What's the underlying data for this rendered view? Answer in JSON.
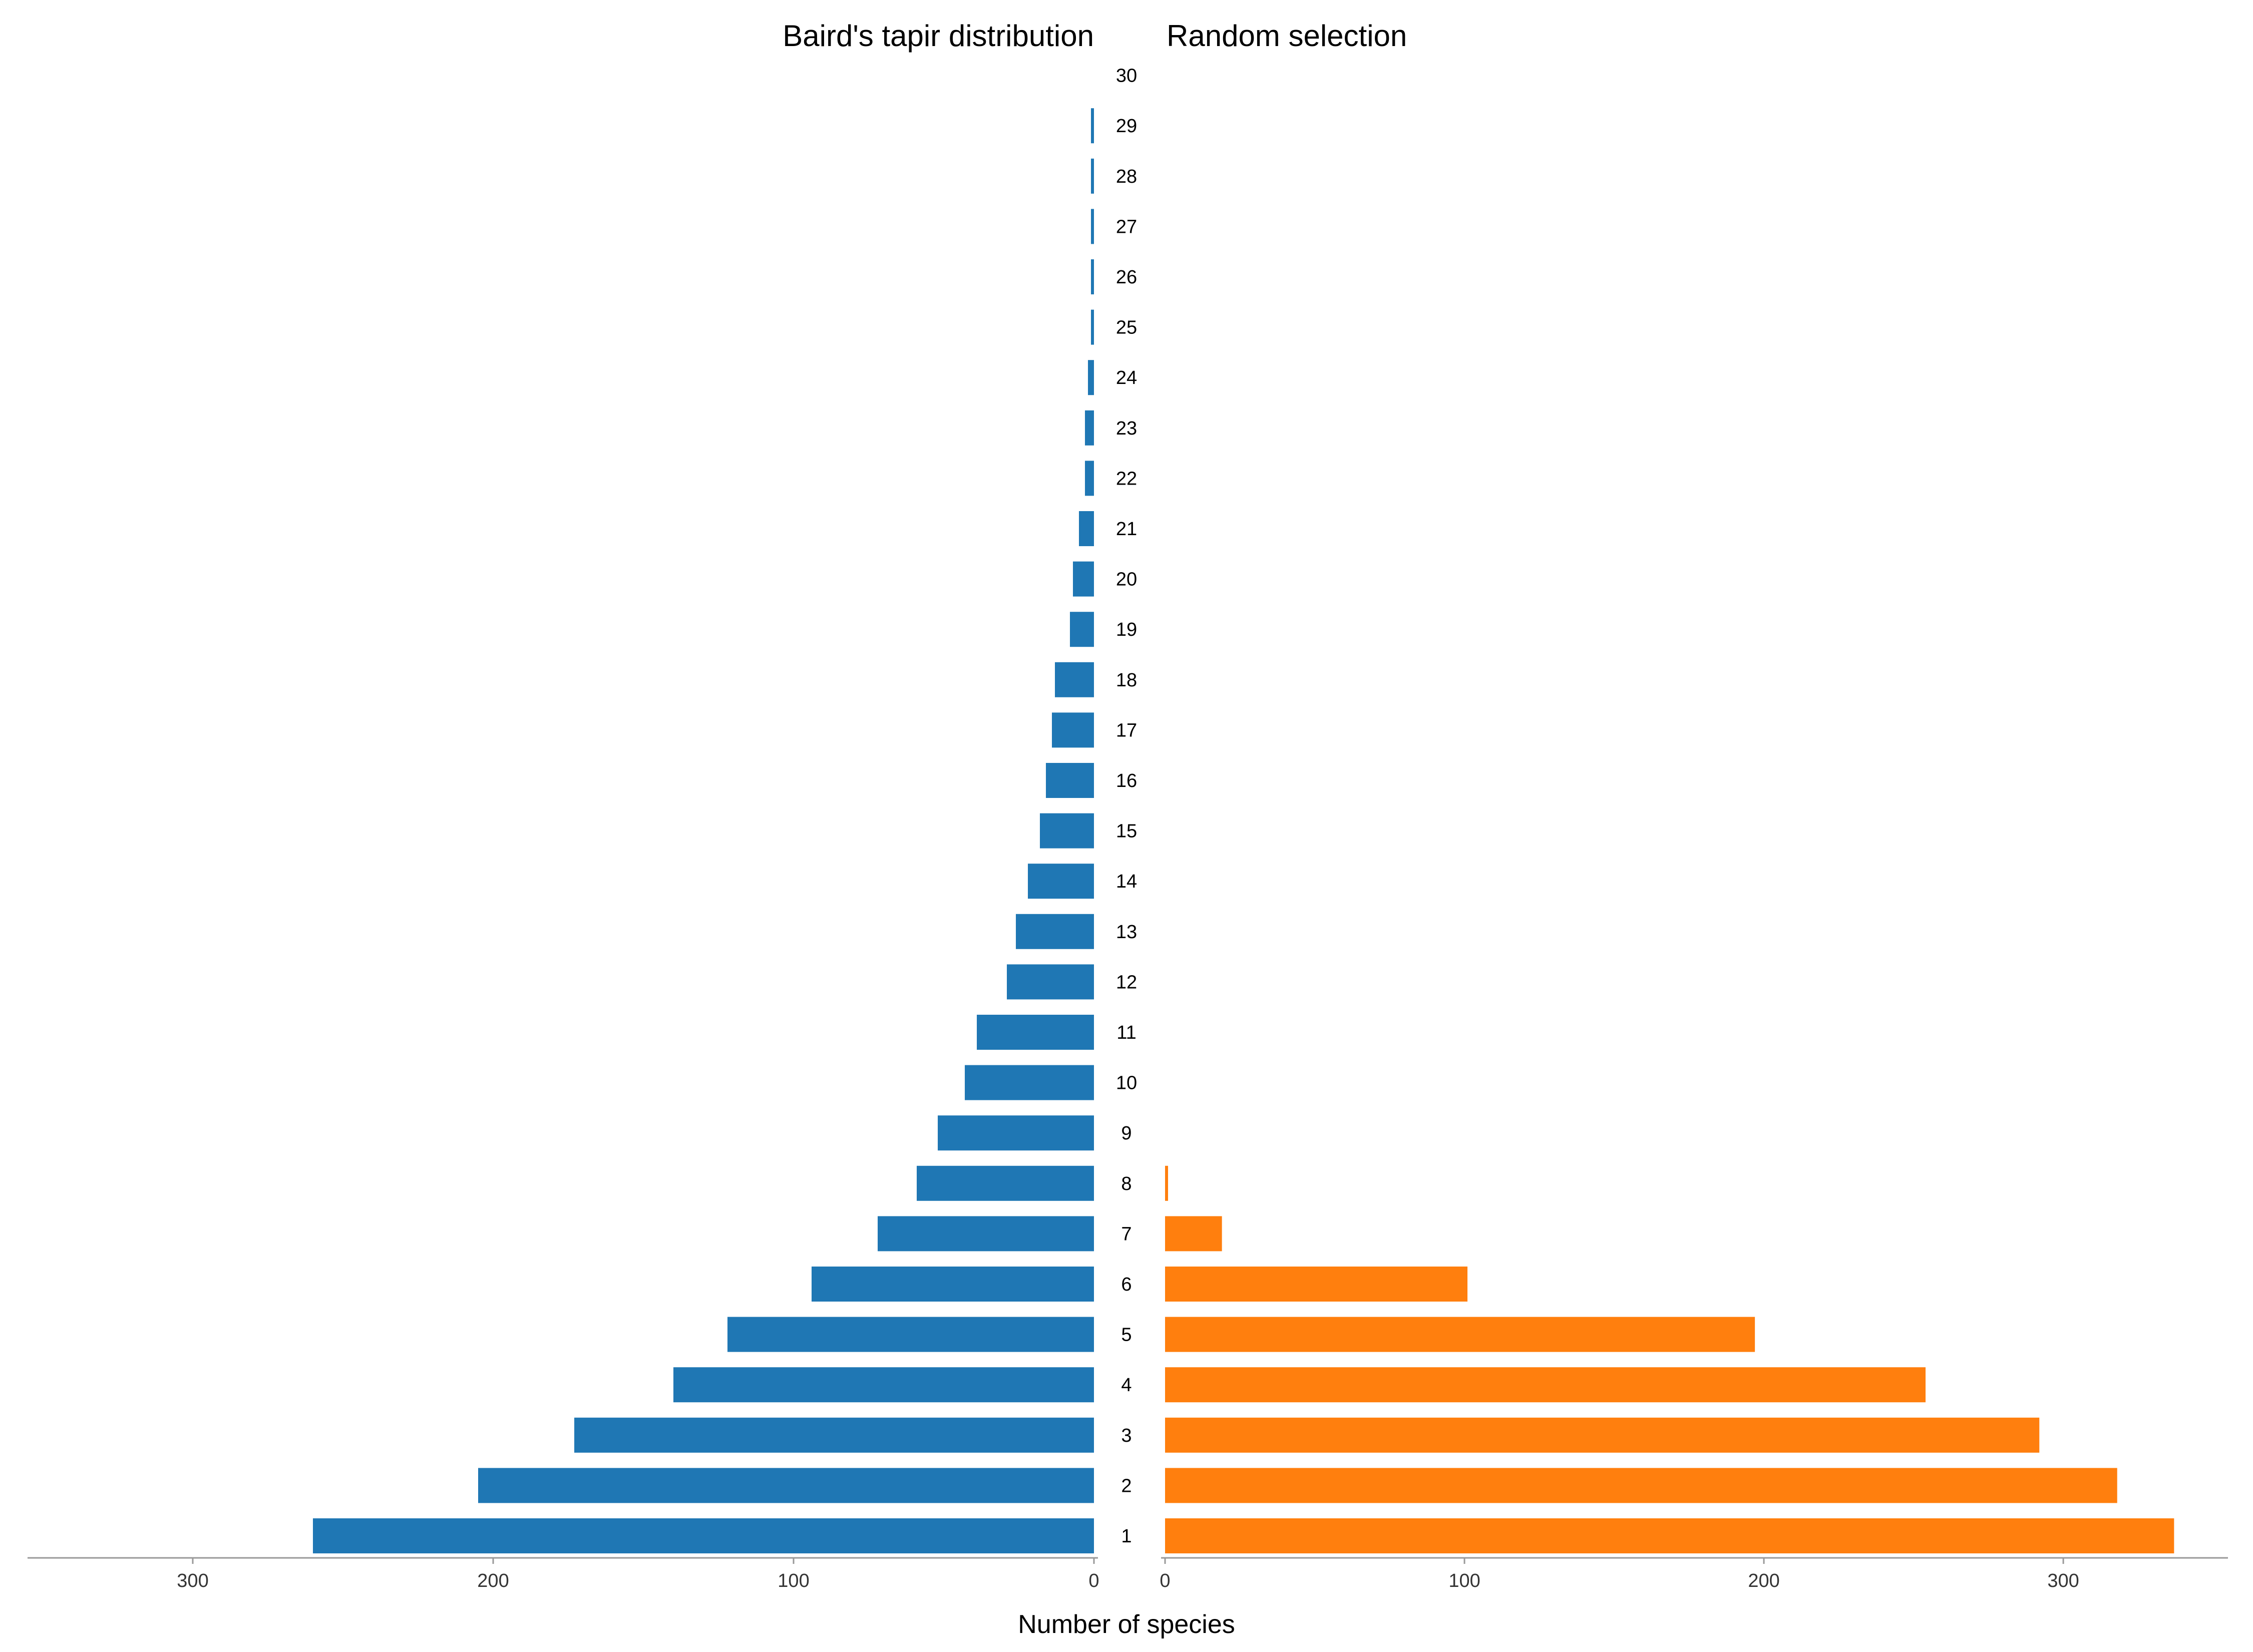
{
  "chart_data": {
    "type": "bar",
    "orientation": "horizontal",
    "layout": "back-to-back",
    "categories": [
      "1",
      "2",
      "3",
      "4",
      "5",
      "6",
      "7",
      "8",
      "9",
      "10",
      "11",
      "12",
      "13",
      "14",
      "15",
      "16",
      "17",
      "18",
      "19",
      "20",
      "21",
      "22",
      "23",
      "24",
      "25",
      "26",
      "27",
      "28",
      "29",
      "30"
    ],
    "series": [
      {
        "name": "Baird's tapir distribution",
        "color": "#1f77b4",
        "side": "left",
        "values": [
          260,
          205,
          173,
          140,
          122,
          94,
          72,
          59,
          52,
          43,
          39,
          29,
          26,
          22,
          18,
          16,
          14,
          13,
          8,
          7,
          5,
          3,
          3,
          2,
          1,
          1,
          1,
          1,
          1,
          0
        ]
      },
      {
        "name": "Random selection",
        "color": "#ff7f0e",
        "side": "right",
        "values": [
          337,
          318,
          292,
          254,
          197,
          101,
          19,
          1,
          0,
          0,
          0,
          0,
          0,
          0,
          0,
          0,
          0,
          0,
          0,
          0,
          0,
          0,
          0,
          0,
          0,
          0,
          0,
          0,
          0,
          0
        ]
      }
    ],
    "xlabel": "Number of species",
    "ylabel": "",
    "xlim_left": [
      0,
      355
    ],
    "xlim_right": [
      0,
      355
    ],
    "xticks_left": [
      300,
      200,
      100,
      0
    ],
    "xticks_right": [
      0,
      100,
      200,
      300
    ],
    "grid": false,
    "legend": "none"
  }
}
